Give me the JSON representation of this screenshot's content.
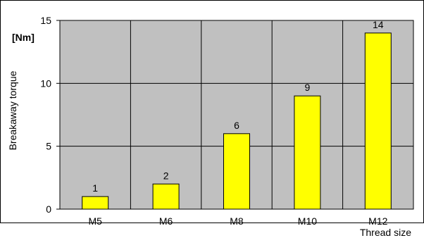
{
  "chart_data": {
    "type": "bar",
    "categories": [
      "M5",
      "M6",
      "M8",
      "M10",
      "M12"
    ],
    "values": [
      1,
      2,
      6,
      9,
      14
    ],
    "data_labels": [
      "1",
      "2",
      "6",
      "9",
      "14"
    ],
    "ylabel": "Breakaway  torque",
    "yunit": "[Nm]",
    "xlabel": "Thread size",
    "ylim": [
      0,
      15
    ],
    "yticks": [
      0,
      5,
      10,
      15
    ],
    "ytick_labels": [
      "0",
      "5",
      "10",
      "15"
    ],
    "grid": true,
    "colors": {
      "bar_fill": "#ffff00",
      "bar_stroke": "#000000",
      "plot_background": "#c0c0c0",
      "grid": "#000000"
    }
  }
}
